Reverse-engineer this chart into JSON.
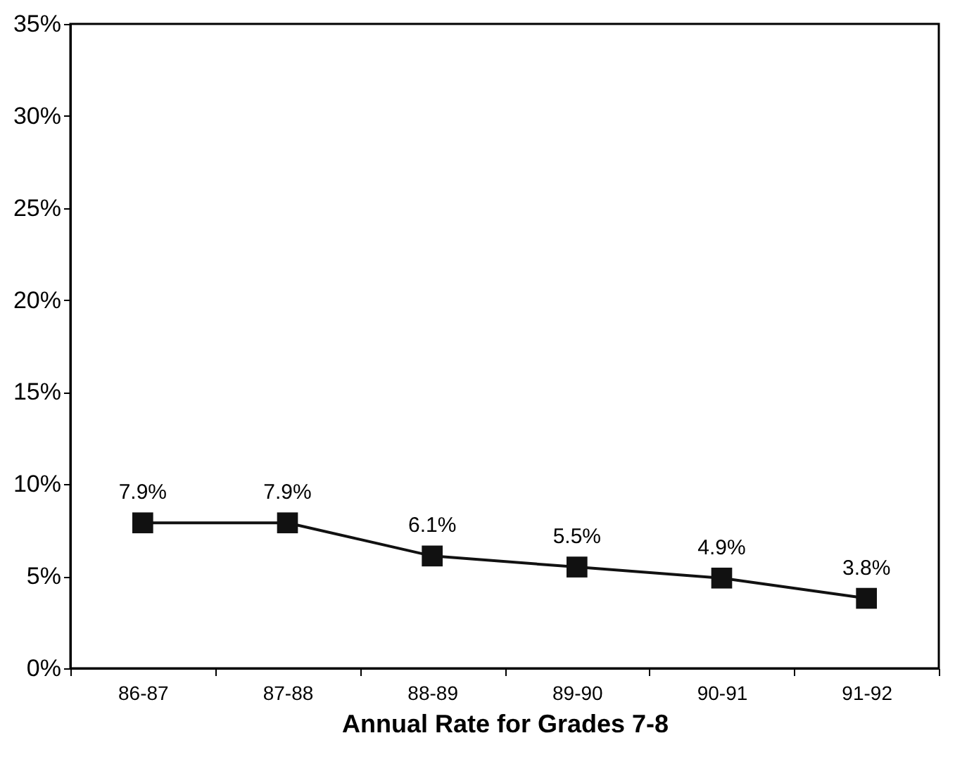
{
  "chart_data": {
    "type": "line",
    "xlabel": "Annual Rate for Grades 7-8",
    "categories": [
      "86-87",
      "87-88",
      "88-89",
      "89-90",
      "90-91",
      "91-92"
    ],
    "series": [
      {
        "color": "#111111",
        "values": [
          7.9,
          7.9,
          6.1,
          5.5,
          4.9,
          3.8
        ],
        "value_labels": [
          "7.9%",
          "7.9%",
          "6.1%",
          "5.5%",
          "4.9%",
          "3.8%"
        ]
      }
    ],
    "ylim": [
      0,
      35
    ],
    "yticks": [
      {
        "value": 0,
        "label": "0%"
      },
      {
        "value": 5,
        "label": "5%"
      },
      {
        "value": 10,
        "label": "10%"
      },
      {
        "value": 15,
        "label": "15%"
      },
      {
        "value": 20,
        "label": "20%"
      },
      {
        "value": 25,
        "label": "25%"
      },
      {
        "value": 30,
        "label": "30%"
      },
      {
        "value": 35,
        "label": "35%"
      }
    ],
    "marker": "square",
    "line_style": "solid",
    "grid": false
  }
}
